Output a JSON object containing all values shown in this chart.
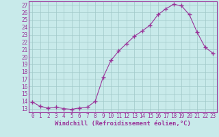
{
  "x": [
    0,
    1,
    2,
    3,
    4,
    5,
    6,
    7,
    8,
    9,
    10,
    11,
    12,
    13,
    14,
    15,
    16,
    17,
    18,
    19,
    20,
    21,
    22,
    23
  ],
  "y": [
    13.9,
    13.3,
    13.1,
    13.2,
    13.0,
    12.9,
    13.1,
    13.2,
    14.0,
    17.2,
    19.5,
    20.8,
    21.8,
    22.8,
    23.5,
    24.3,
    25.7,
    26.5,
    27.1,
    26.9,
    25.7,
    23.3,
    21.3,
    20.5
  ],
  "line_color": "#993399",
  "marker": "+",
  "marker_color": "#993399",
  "bg_color": "#c8eaea",
  "grid_color": "#a0c8c8",
  "ylabel_ticks": [
    13,
    14,
    15,
    16,
    17,
    18,
    19,
    20,
    21,
    22,
    23,
    24,
    25,
    26,
    27
  ],
  "xlabel": "Windchill (Refroidissement éolien,°C)",
  "ylim": [
    12.5,
    27.5
  ],
  "xlim": [
    -0.5,
    23.5
  ],
  "tick_fontsize": 5.5,
  "xlabel_fontsize": 6.5
}
